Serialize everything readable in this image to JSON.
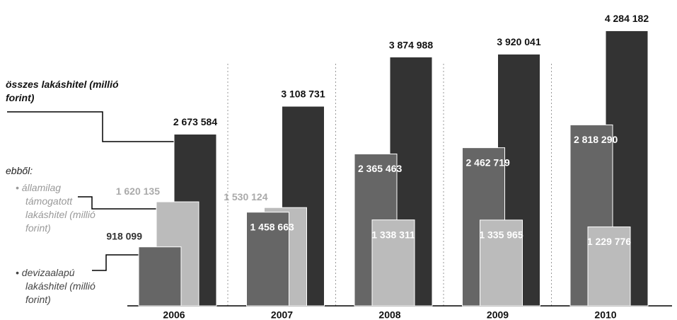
{
  "chart_data": {
    "type": "bar",
    "categories": [
      "2006",
      "2007",
      "2008",
      "2009",
      "2010"
    ],
    "legend_heading": "ebből:",
    "series": [
      {
        "name": "összes lakáshitel (millió forint)",
        "color": "#333333",
        "values": [
          2673584,
          3108731,
          3874988,
          3920041,
          4284182
        ],
        "value_labels": [
          "2 673 584",
          "3 108 731",
          "3 874 988",
          "3 920 041",
          "4 284 182"
        ]
      },
      {
        "name": "államilag támogatott lakáshitel (millió forint)",
        "color": "#bbbbbb",
        "values": [
          1620135,
          1530124,
          1338311,
          1335965,
          1229776
        ],
        "value_labels": [
          "1 620 135",
          "1 530 124",
          "1 338 311",
          "1 335 965",
          "1 229 776"
        ]
      },
      {
        "name": "devizaalapú lakáshitel (millió forint)",
        "color": "#666666",
        "values": [
          918099,
          1458663,
          2365463,
          2462719,
          2818290
        ],
        "value_labels": [
          "918 099",
          "1 458 663",
          "2 365 463",
          "2 462 719",
          "2 818 290"
        ]
      }
    ],
    "ylim": [
      0,
      4300000
    ]
  }
}
